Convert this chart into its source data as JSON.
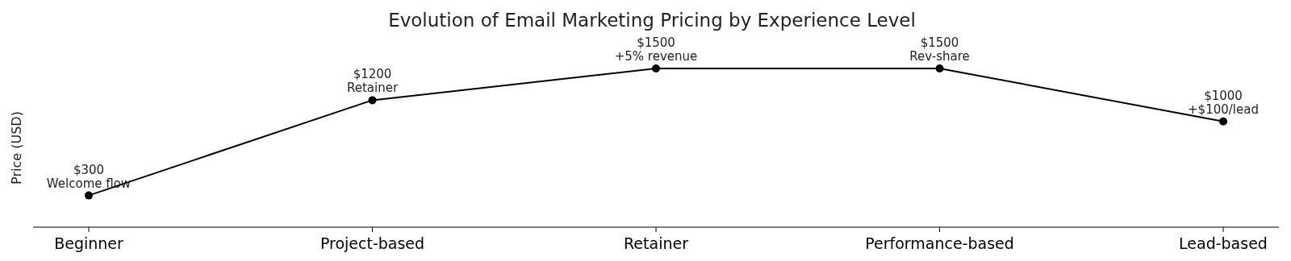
{
  "chart_data": {
    "type": "line",
    "title": "Evolution of Email Marketing Pricing by Experience Level",
    "ylabel": "Price (USD)",
    "categories": [
      "Beginner",
      "Project-based",
      "Retainer",
      "Performance-based",
      "Lead-based"
    ],
    "series": [
      {
        "color": "#000000",
        "values": [
          300,
          1200,
          1500,
          1500,
          1000
        ],
        "value_labels": [
          "$300\nWelcome flow",
          "$1200\nRetainer",
          "$1500\n+5% revenue",
          "$1500\nRev-share",
          "$1000\n+$100/lead"
        ]
      }
    ],
    "marker": "circle",
    "line_style": "solid",
    "grid": false,
    "tick_labels": "x"
  }
}
